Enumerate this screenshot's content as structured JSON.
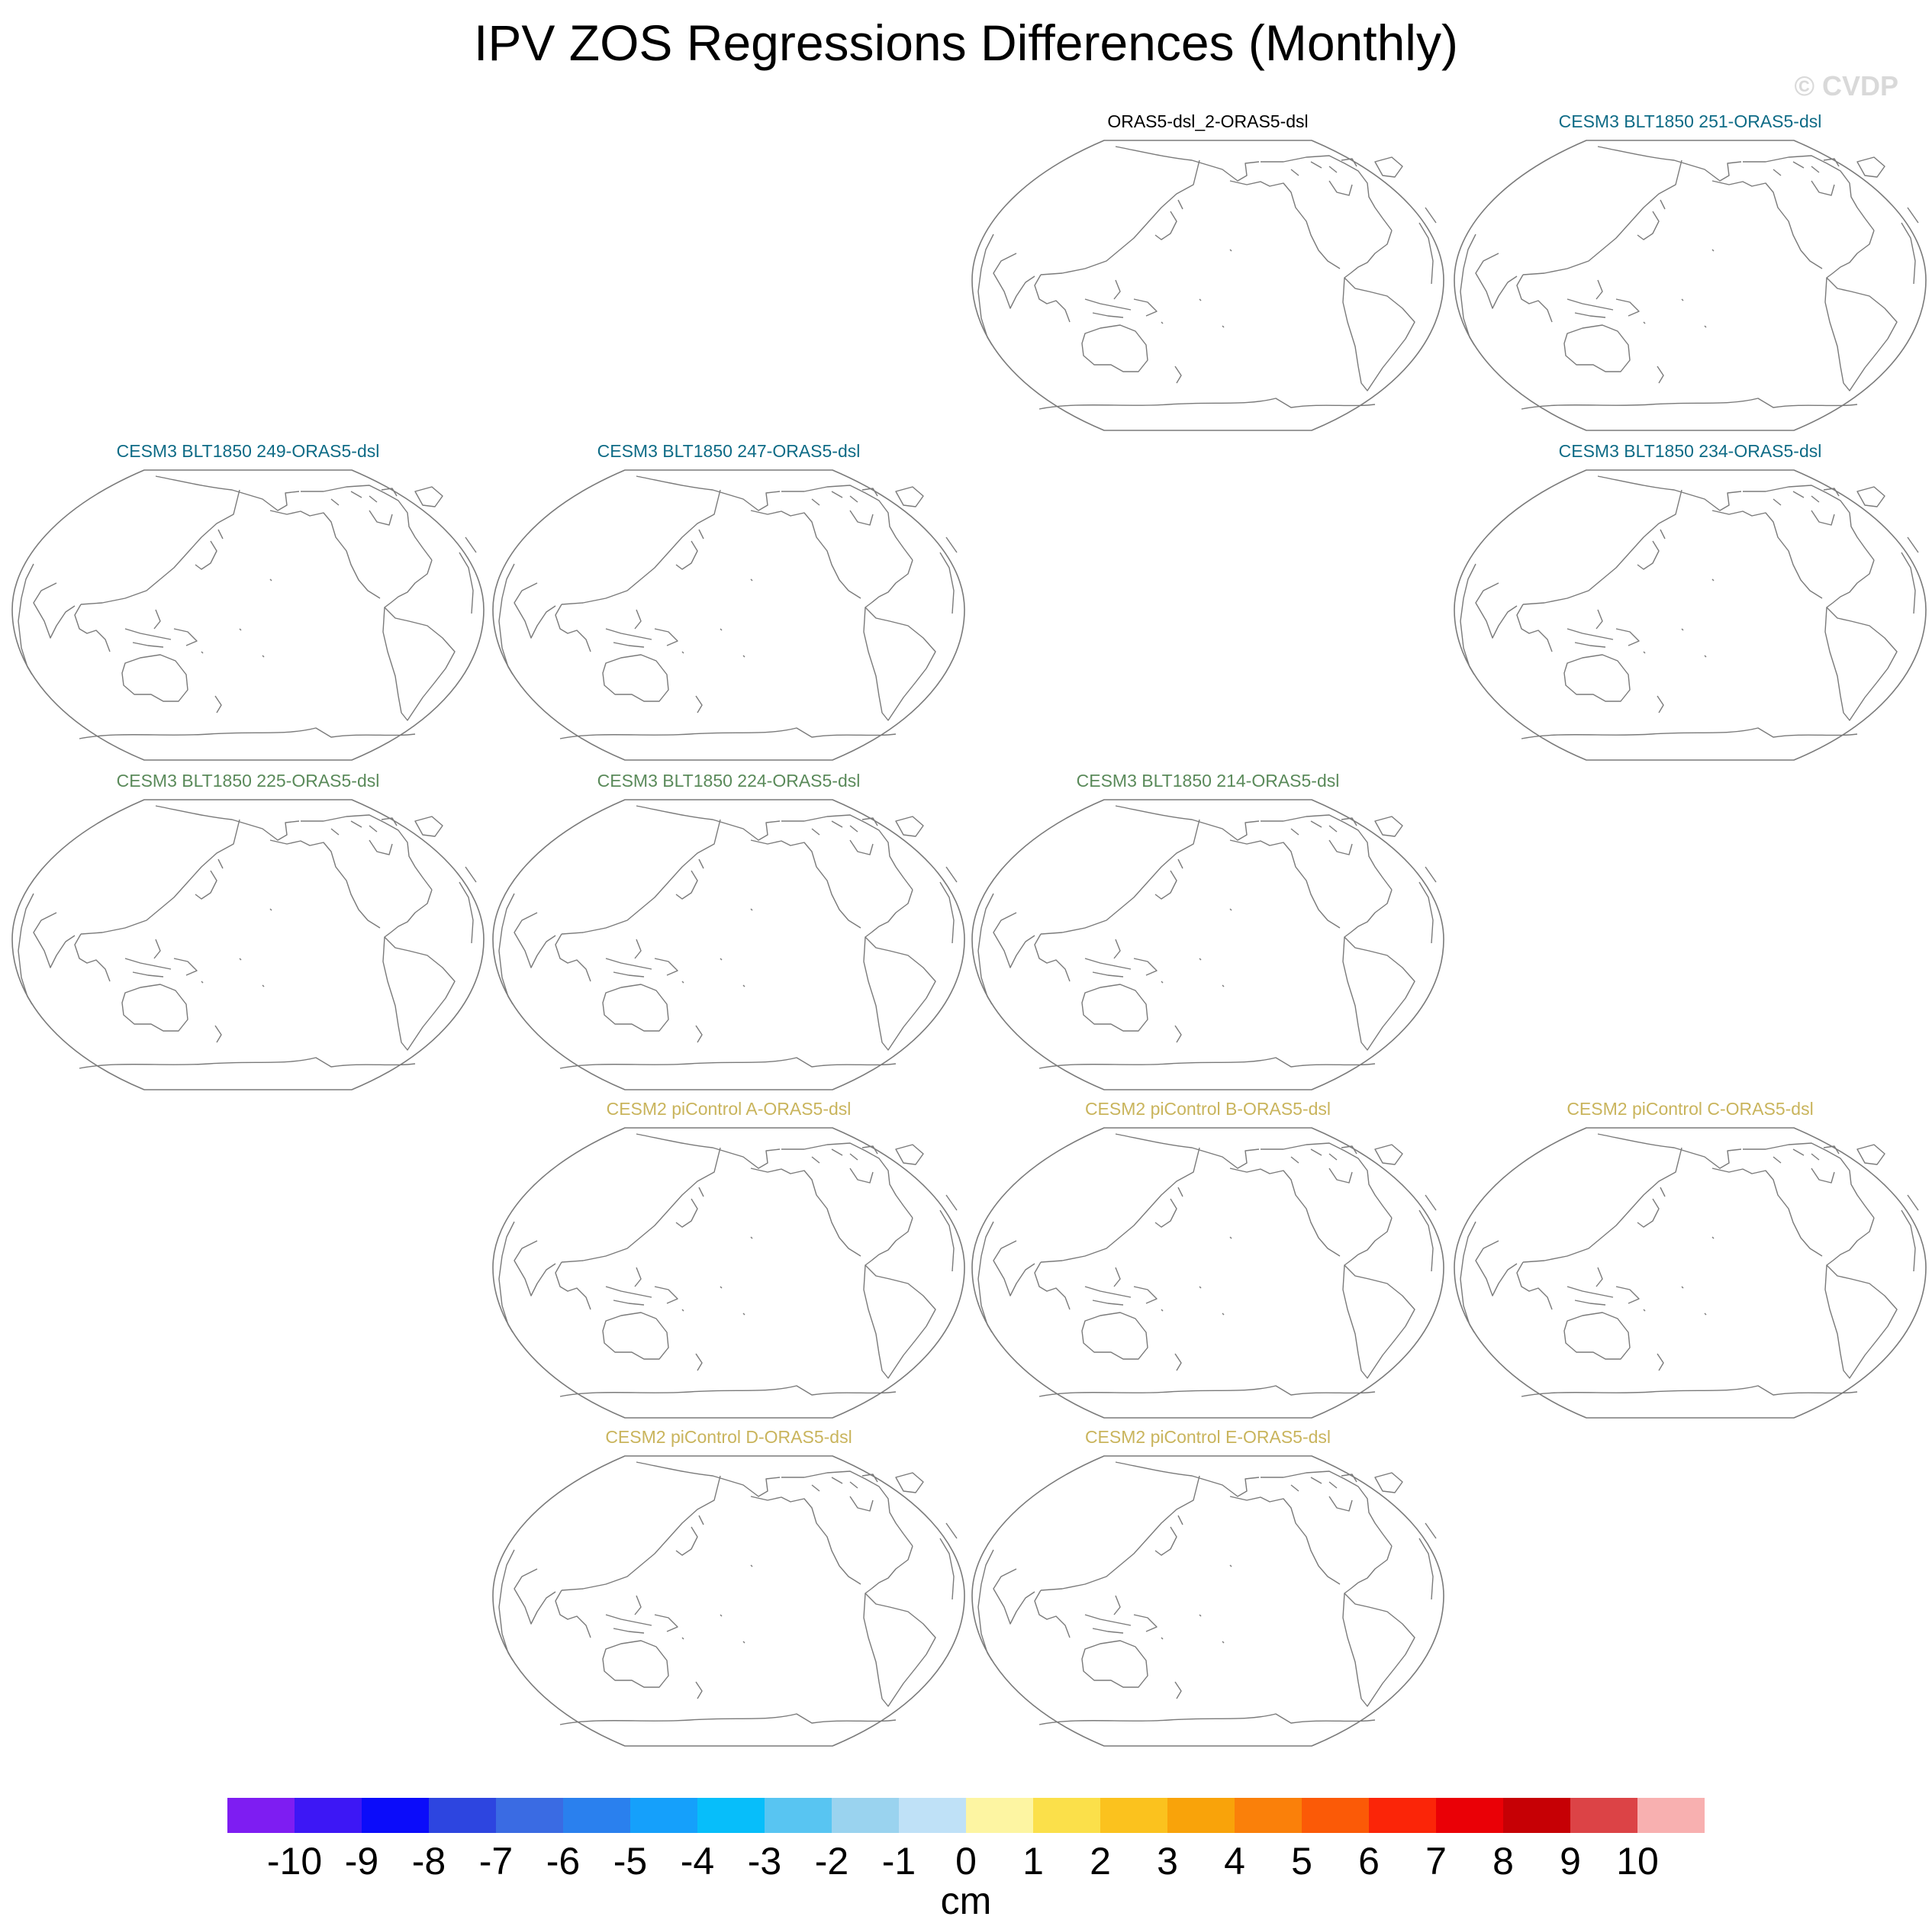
{
  "title": "IPV ZOS Regressions Differences (Monthly)",
  "watermark": "© CVDP",
  "colors": {
    "coast": "#7a7a7a",
    "label_black": "#000000",
    "label_cesm3_blue": "#0e6b86",
    "label_cesm3_green": "#5a8a5a",
    "label_cesm2_gold": "#c9b45c"
  },
  "chart_data": {
    "type": "map-panels",
    "projection": "Robinson, Pacific-centered",
    "variable": "ZOS regression difference",
    "panels": [
      {
        "id": "p1",
        "title": "ORAS5-dsl_2-ORAS5-dsl",
        "color": "#000000"
      },
      {
        "id": "p2",
        "title": "CESM3 BLT1850 251-ORAS5-dsl",
        "color": "#0e6b86"
      },
      {
        "id": "p3",
        "title": "CESM3 BLT1850 249-ORAS5-dsl",
        "color": "#0e6b86"
      },
      {
        "id": "p4",
        "title": "CESM3 BLT1850 247-ORAS5-dsl",
        "color": "#0e6b86"
      },
      {
        "id": "p5",
        "title": "CESM3 BLT1850 234-ORAS5-dsl",
        "color": "#0e6b86"
      },
      {
        "id": "p6",
        "title": "CESM3 BLT1850 225-ORAS5-dsl",
        "color": "#5a8a5a"
      },
      {
        "id": "p7",
        "title": "CESM3 BLT1850 224-ORAS5-dsl",
        "color": "#5a8a5a"
      },
      {
        "id": "p8",
        "title": "CESM3 BLT1850 214-ORAS5-dsl",
        "color": "#5a8a5a"
      },
      {
        "id": "p9",
        "title": "CESM2 piControl A-ORAS5-dsl",
        "color": "#c9b45c"
      },
      {
        "id": "p10",
        "title": "CESM2 piControl B-ORAS5-dsl",
        "color": "#c9b45c"
      },
      {
        "id": "p11",
        "title": "CESM2 piControl C-ORAS5-dsl",
        "color": "#c9b45c"
      },
      {
        "id": "p12",
        "title": "CESM2 piControl D-ORAS5-dsl",
        "color": "#c9b45c"
      },
      {
        "id": "p13",
        "title": "CESM2 piControl E-ORAS5-dsl",
        "color": "#c9b45c"
      }
    ],
    "colorbar": {
      "units": "cm",
      "ticks": [
        "-10",
        "-9",
        "-8",
        "-7",
        "-6",
        "-5",
        "-4",
        "-3",
        "-2",
        "-1",
        "0",
        "1",
        "2",
        "3",
        "4",
        "5",
        "6",
        "7",
        "8",
        "9",
        "10"
      ],
      "colors": [
        "#7e1df2",
        "#3d17f5",
        "#0b0cfa",
        "#2d45e0",
        "#3a6be3",
        "#2a80ee",
        "#15a0fb",
        "#07befa",
        "#58c5f2",
        "#9ad3ef",
        "#bfe1f7",
        "#fdf5a2",
        "#fbe04a",
        "#fbc21e",
        "#f9a30a",
        "#fa800a",
        "#fb5a07",
        "#fb2508",
        "#ea0006",
        "#c60005",
        "#dc4346",
        "#f8b0b0"
      ]
    }
  }
}
